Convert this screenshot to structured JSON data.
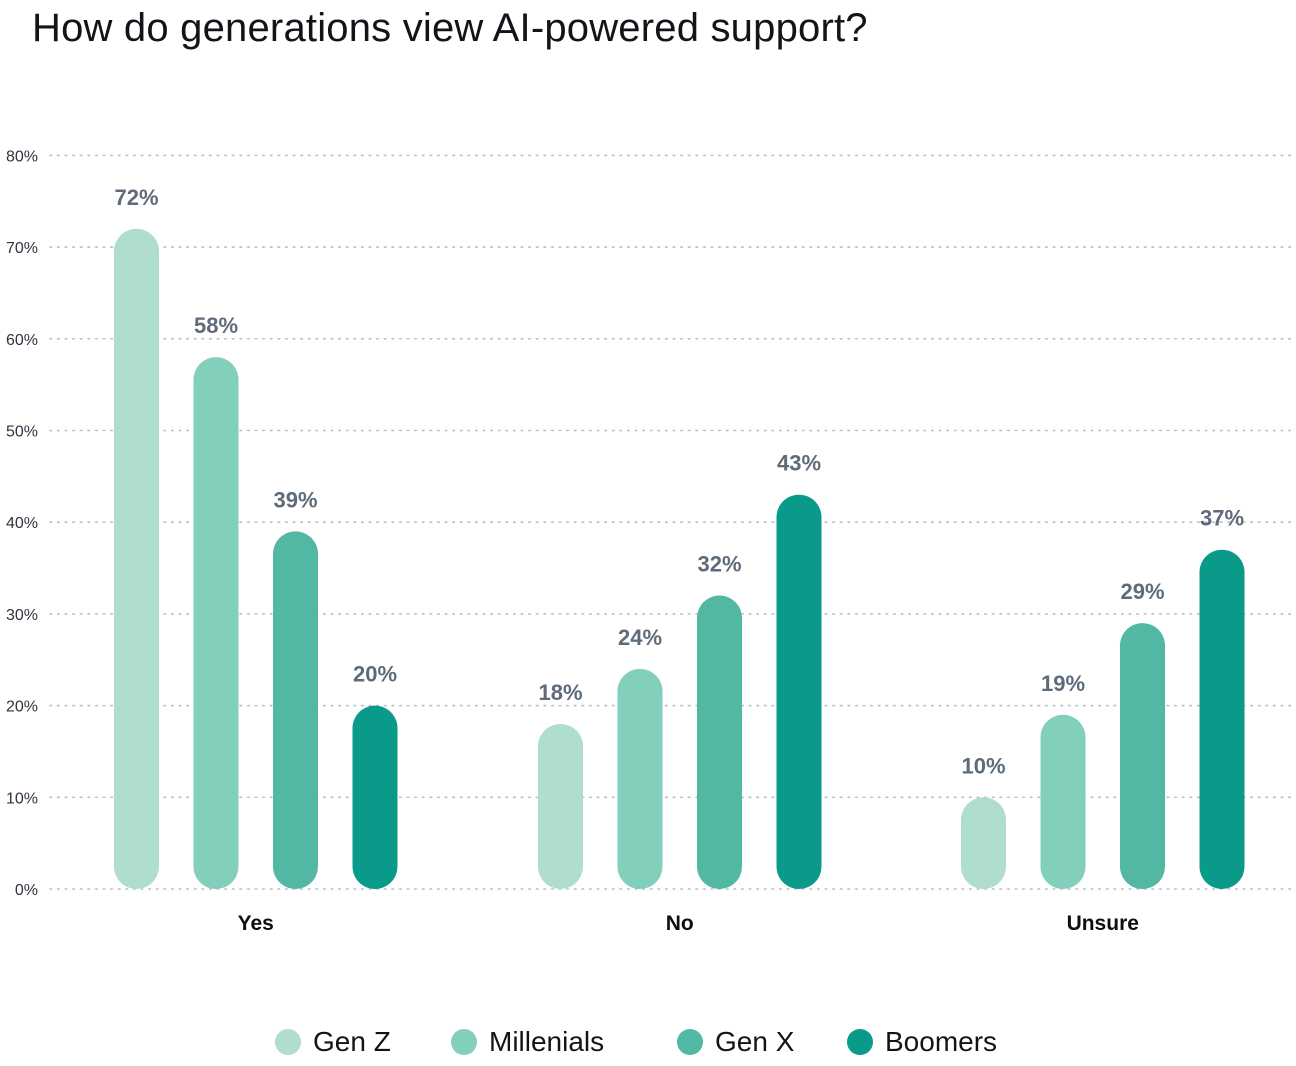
{
  "title": "How do generations view AI-powered support?",
  "chart_data": {
    "type": "bar",
    "categories": [
      "Yes",
      "No",
      "Unsure"
    ],
    "series": [
      {
        "name": "Gen Z",
        "color": "#b0dece",
        "values": [
          72,
          18,
          10
        ]
      },
      {
        "name": "Millenials",
        "color": "#82cfbb",
        "values": [
          58,
          24,
          19
        ]
      },
      {
        "name": "Gen X",
        "color": "#52b8a3",
        "values": [
          39,
          32,
          29
        ]
      },
      {
        "name": "Boomers",
        "color": "#099a8a",
        "values": [
          20,
          43,
          37
        ]
      }
    ],
    "yticks": [
      "0%",
      "10%",
      "20%",
      "30%",
      "40%",
      "50%",
      "60%",
      "70%",
      "80%"
    ],
    "ylim": [
      0,
      80
    ],
    "value_format": "{v}%",
    "grid": true,
    "legend_position": "bottom"
  }
}
